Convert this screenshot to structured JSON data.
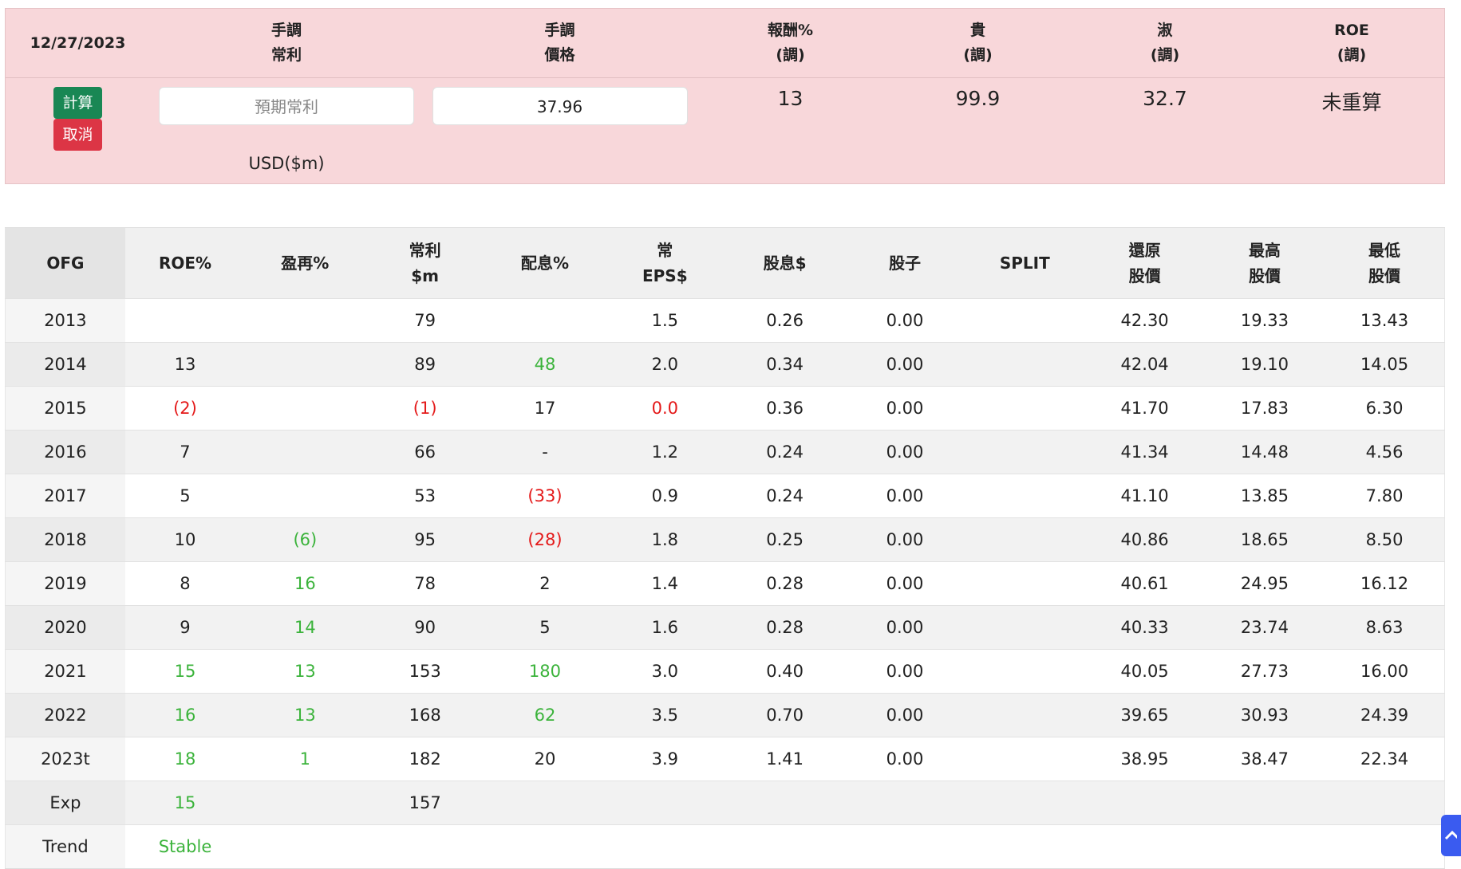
{
  "panel": {
    "date": "12/27/2023",
    "headers": [
      [
        "手調",
        "常利"
      ],
      [
        "手調",
        "價格"
      ],
      [
        "報酬%",
        "(調)"
      ],
      [
        "貴",
        "(調)"
      ],
      [
        "淑",
        "(調)"
      ],
      [
        "ROE",
        "(調)"
      ]
    ],
    "buttons": {
      "calc": "計算",
      "cancel": "取消"
    },
    "profit_input_placeholder": "預期常利",
    "unit": "USD($m)",
    "price_input": "37.96",
    "results": [
      "13",
      "99.9",
      "32.7",
      "未重算"
    ]
  },
  "table": {
    "headers": [
      [
        "OFG"
      ],
      [
        "ROE%"
      ],
      [
        "盈再%"
      ],
      [
        "常利",
        "$m"
      ],
      [
        "配息%"
      ],
      [
        "常",
        "EPS$"
      ],
      [
        "股息$"
      ],
      [
        "股子"
      ],
      [
        "SPLIT"
      ],
      [
        "還原",
        "股價"
      ],
      [
        "最高",
        "股價"
      ],
      [
        "最低",
        "股價"
      ]
    ],
    "rows": [
      [
        "2013",
        null,
        null,
        "79",
        null,
        "1.5",
        "0.26",
        "0.00",
        null,
        "42.30",
        "19.33",
        "13.43"
      ],
      [
        "2014",
        "13",
        null,
        "89",
        {
          "text": "48",
          "color": "green"
        },
        "2.0",
        "0.34",
        "0.00",
        null,
        "42.04",
        "19.10",
        "14.05"
      ],
      [
        "2015",
        {
          "text": "(2)",
          "color": "red"
        },
        null,
        {
          "text": "(1)",
          "color": "red"
        },
        "17",
        {
          "text": "0.0",
          "color": "red"
        },
        "0.36",
        "0.00",
        null,
        "41.70",
        "17.83",
        "6.30"
      ],
      [
        "2016",
        "7",
        null,
        "66",
        "-",
        "1.2",
        "0.24",
        "0.00",
        null,
        "41.34",
        "14.48",
        "4.56"
      ],
      [
        "2017",
        "5",
        null,
        "53",
        {
          "text": "(33)",
          "color": "red"
        },
        "0.9",
        "0.24",
        "0.00",
        null,
        "41.10",
        "13.85",
        "7.80"
      ],
      [
        "2018",
        "10",
        {
          "text": "(6)",
          "color": "green"
        },
        "95",
        {
          "text": "(28)",
          "color": "red"
        },
        "1.8",
        "0.25",
        "0.00",
        null,
        "40.86",
        "18.65",
        "8.50"
      ],
      [
        "2019",
        "8",
        {
          "text": "16",
          "color": "green"
        },
        "78",
        "2",
        "1.4",
        "0.28",
        "0.00",
        null,
        "40.61",
        "24.95",
        "16.12"
      ],
      [
        "2020",
        "9",
        {
          "text": "14",
          "color": "green"
        },
        "90",
        "5",
        "1.6",
        "0.28",
        "0.00",
        null,
        "40.33",
        "23.74",
        "8.63"
      ],
      [
        "2021",
        {
          "text": "15",
          "color": "green"
        },
        {
          "text": "13",
          "color": "green"
        },
        "153",
        {
          "text": "180",
          "color": "green"
        },
        "3.0",
        "0.40",
        "0.00",
        null,
        "40.05",
        "27.73",
        "16.00"
      ],
      [
        "2022",
        {
          "text": "16",
          "color": "green"
        },
        {
          "text": "13",
          "color": "green"
        },
        "168",
        {
          "text": "62",
          "color": "green"
        },
        "3.5",
        "0.70",
        "0.00",
        null,
        "39.65",
        "30.93",
        "24.39"
      ],
      [
        "2023t",
        {
          "text": "18",
          "color": "green"
        },
        {
          "text": "1",
          "color": "green"
        },
        "182",
        "20",
        "3.9",
        "1.41",
        "0.00",
        null,
        "38.95",
        "38.47",
        "22.34"
      ],
      [
        "Exp",
        {
          "text": "15",
          "color": "green"
        },
        null,
        "157",
        null,
        null,
        null,
        null,
        null,
        null,
        null,
        null
      ],
      [
        "Trend",
        {
          "text": "Stable",
          "color": "green"
        },
        null,
        null,
        null,
        null,
        null,
        null,
        null,
        null,
        null,
        null
      ]
    ]
  }
}
